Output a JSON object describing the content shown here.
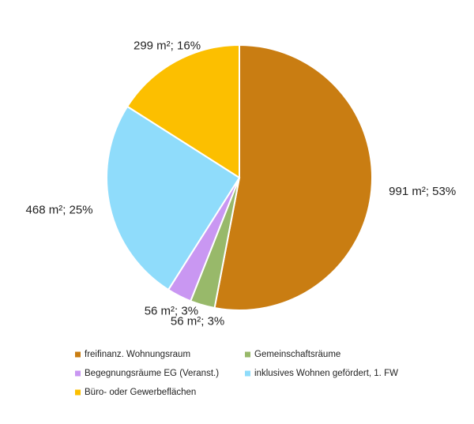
{
  "chart_data": {
    "type": "pie",
    "categories": [
      "freifinanz. Wohnungsraum",
      "Gemeinschaftsräume",
      "Begegnungsräume EG (Veranst.)",
      "inklusives Wohnen gefördert, 1. FW",
      "Büro- oder Gewerbeflächen"
    ],
    "values": [
      991,
      56,
      56,
      468,
      299
    ],
    "value_labels": [
      "991 m²; 53%",
      "56 m²; 3%",
      "56 m²; 3%",
      "468 m²; 25%",
      "299 m²; 16%"
    ],
    "colors": [
      "#c97d12",
      "#98b96a",
      "#c997f2",
      "#8fdcfb",
      "#fcbf00"
    ]
  }
}
